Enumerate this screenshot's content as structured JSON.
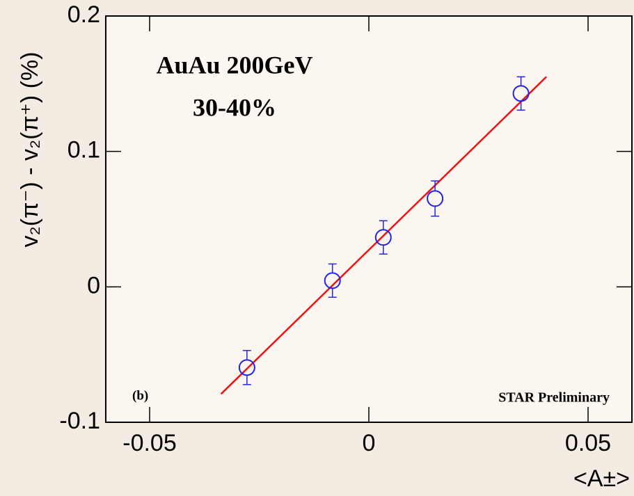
{
  "chart_data": {
    "type": "scatter",
    "x_label": "<A±>",
    "y_label": "v₂(π⁻) - v₂(π⁺) (%)",
    "annotations": [
      "AuAu 200GeV",
      "30-40%",
      "(b)",
      "STAR Preliminary"
    ],
    "xlim": [
      -0.06,
      0.06
    ],
    "ylim": [
      -0.1,
      0.2
    ],
    "xticks": [
      -0.05,
      0,
      0.05
    ],
    "yticks": [
      -0.1,
      0,
      0.1,
      0.2
    ],
    "series": [
      {
        "color": "#2222ee",
        "x": [
          -0.0278,
          -0.0083,
          0.0033,
          0.0151,
          0.0347
        ],
        "values": [
          -0.0596,
          0.0046,
          0.0365,
          0.0652,
          0.1428
        ],
        "errors": [
          0.0126,
          0.0123,
          0.0123,
          0.013,
          0.0123
        ]
      }
    ],
    "fit": {
      "color": "#ee1111",
      "x": [
        -0.0337,
        0.0405
      ],
      "values": [
        -0.0791,
        0.1551
      ]
    }
  }
}
